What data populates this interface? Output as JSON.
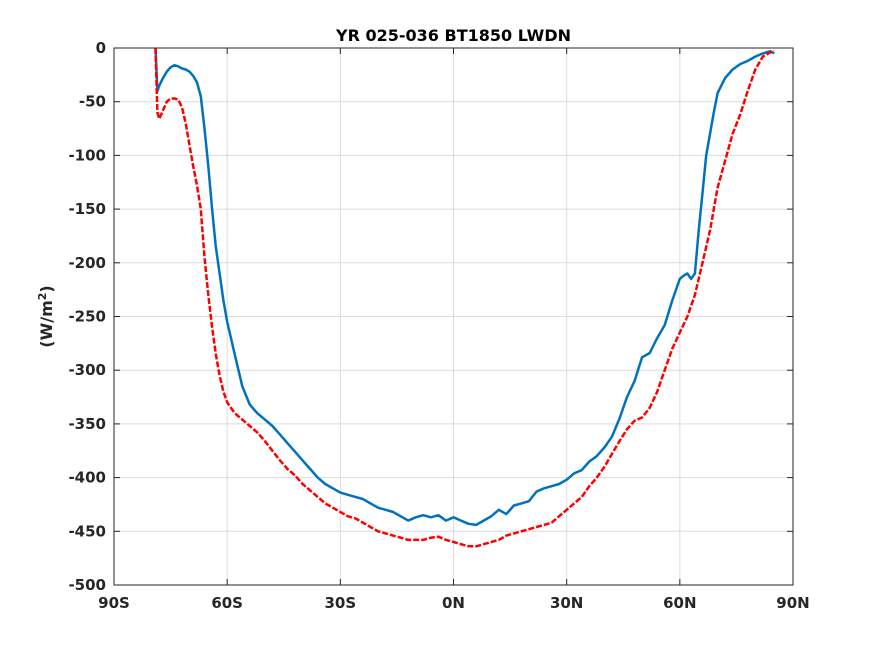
{
  "chart_data": {
    "type": "line",
    "title": "YR 025-036 BT1850 LWDN",
    "xlabel": "",
    "ylabel": "(W/m",
    "ylabel_sup": "2",
    "ylabel_close": ")",
    "xlim": [
      -90,
      90
    ],
    "ylim": [
      -500,
      0
    ],
    "xticks": [
      -90,
      -60,
      -30,
      0,
      30,
      60,
      90
    ],
    "xtick_labels": [
      "90S",
      "60S",
      "30S",
      "0N",
      "30N",
      "60N",
      "90N"
    ],
    "yticks": [
      0,
      -50,
      -100,
      -150,
      -200,
      -250,
      -300,
      -350,
      -400,
      -450,
      -500
    ],
    "ytick_labels": [
      "0",
      "-50",
      "-100",
      "-150",
      "-200",
      "-250",
      "-300",
      "-350",
      "-400",
      "-450",
      "-500"
    ],
    "grid": true,
    "series": [
      {
        "color": "#0072BD",
        "style": "solid",
        "x": [
          -79,
          -78.5,
          -78,
          -77,
          -76,
          -75,
          -74,
          -73,
          -72,
          -71,
          -70,
          -69,
          -68,
          -67,
          -66,
          -65,
          -64,
          -63,
          -62,
          -61,
          -60,
          -58,
          -56,
          -54,
          -52,
          -50,
          -48,
          -46,
          -44,
          -42,
          -40,
          -38,
          -36,
          -34,
          -32,
          -30,
          -28,
          -26,
          -24,
          -22,
          -20,
          -18,
          -16,
          -14,
          -12,
          -10,
          -8,
          -6,
          -4,
          -2,
          0,
          2,
          4,
          6,
          8,
          10,
          12,
          14,
          16,
          18,
          20,
          22,
          24,
          26,
          28,
          30,
          32,
          34,
          36,
          38,
          40,
          42,
          44,
          46,
          48,
          50,
          52,
          54,
          56,
          58,
          60,
          61,
          62,
          63,
          64,
          65,
          66,
          67,
          68,
          69,
          70,
          72,
          74,
          76,
          78,
          80,
          82,
          84,
          85
        ],
        "values": [
          0,
          -40,
          -35,
          -28,
          -22,
          -18,
          -16,
          -17,
          -19,
          -20,
          -22,
          -26,
          -32,
          -45,
          -75,
          -110,
          -150,
          -185,
          -210,
          -235,
          -255,
          -285,
          -315,
          -332,
          -340,
          -346,
          -352,
          -360,
          -368,
          -376,
          -384,
          -392,
          -400,
          -406,
          -410,
          -414,
          -416,
          -418,
          -420,
          -424,
          -428,
          -430,
          -432,
          -436,
          -440,
          -437,
          -435,
          -437,
          -435,
          -440,
          -437,
          -440,
          -443,
          -444,
          -440,
          -436,
          -430,
          -434,
          -426,
          -424,
          -422,
          -413,
          -410,
          -408,
          -406,
          -402,
          -396,
          -393,
          -385,
          -380,
          -372,
          -362,
          -345,
          -325,
          -310,
          -288,
          -284,
          -270,
          -258,
          -235,
          -215,
          -212,
          -210,
          -215,
          -210,
          -170,
          -135,
          -100,
          -80,
          -60,
          -42,
          -28,
          -20,
          -15,
          -12,
          -8,
          -5,
          -3,
          -5
        ]
      },
      {
        "color": "#FF0000",
        "style": "dashed",
        "x": [
          -79,
          -78.5,
          -78,
          -77,
          -76,
          -75,
          -74,
          -73,
          -72,
          -71,
          -70,
          -69,
          -68,
          -67,
          -66,
          -65,
          -64,
          -63,
          -62,
          -61,
          -60,
          -58,
          -56,
          -54,
          -52,
          -50,
          -48,
          -46,
          -44,
          -42,
          -40,
          -38,
          -36,
          -34,
          -32,
          -30,
          -28,
          -26,
          -24,
          -22,
          -20,
          -18,
          -16,
          -14,
          -12,
          -10,
          -8,
          -6,
          -4,
          -2,
          0,
          2,
          4,
          6,
          8,
          10,
          12,
          14,
          16,
          18,
          20,
          22,
          24,
          26,
          28,
          30,
          32,
          34,
          36,
          38,
          40,
          42,
          44,
          46,
          48,
          50,
          52,
          54,
          56,
          58,
          60,
          62,
          64,
          66,
          68,
          70,
          72,
          74,
          76,
          78,
          80,
          82,
          84,
          85
        ],
        "values": [
          0,
          -60,
          -66,
          -58,
          -50,
          -47,
          -47,
          -48,
          -55,
          -70,
          -90,
          -110,
          -128,
          -150,
          -195,
          -230,
          -260,
          -285,
          -305,
          -320,
          -330,
          -340,
          -346,
          -352,
          -358,
          -366,
          -375,
          -384,
          -392,
          -398,
          -406,
          -412,
          -418,
          -424,
          -428,
          -432,
          -436,
          -438,
          -442,
          -446,
          -450,
          -452,
          -454,
          -456,
          -458,
          -458,
          -458,
          -456,
          -455,
          -458,
          -460,
          -462,
          -464,
          -464,
          -462,
          -460,
          -458,
          -454,
          -452,
          -450,
          -448,
          -446,
          -444,
          -442,
          -436,
          -430,
          -424,
          -418,
          -408,
          -400,
          -390,
          -378,
          -366,
          -355,
          -347,
          -344,
          -335,
          -320,
          -300,
          -280,
          -265,
          -250,
          -230,
          -200,
          -170,
          -130,
          -105,
          -80,
          -62,
          -40,
          -20,
          -8,
          -4,
          -3
        ]
      }
    ]
  }
}
